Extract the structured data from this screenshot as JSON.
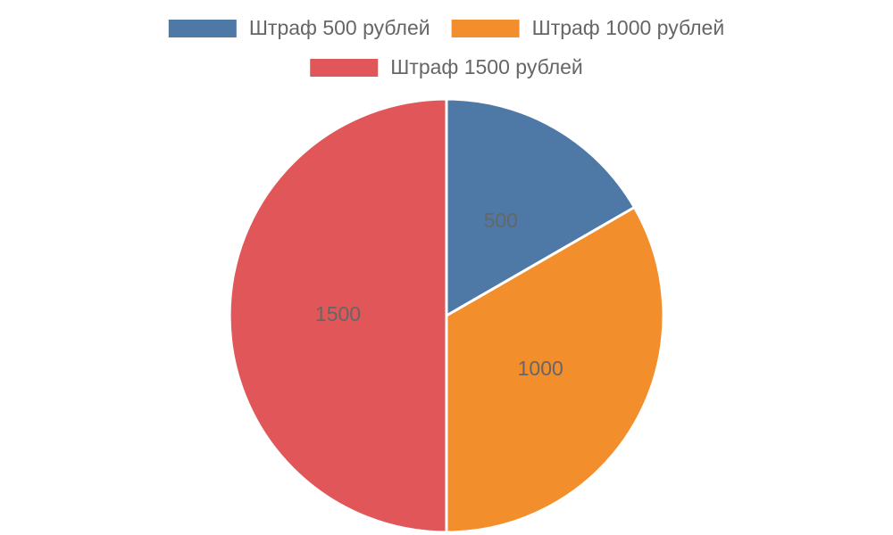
{
  "chart_data": {
    "type": "pie",
    "categories": [
      "Штраф 500 рублей",
      "Штраф 1000 рублей",
      "Штраф 1500 рублей"
    ],
    "values": [
      500,
      1000,
      1500
    ],
    "colors": [
      "#4e79a7",
      "#f28e2b",
      "#e15759"
    ],
    "legend": "top"
  }
}
